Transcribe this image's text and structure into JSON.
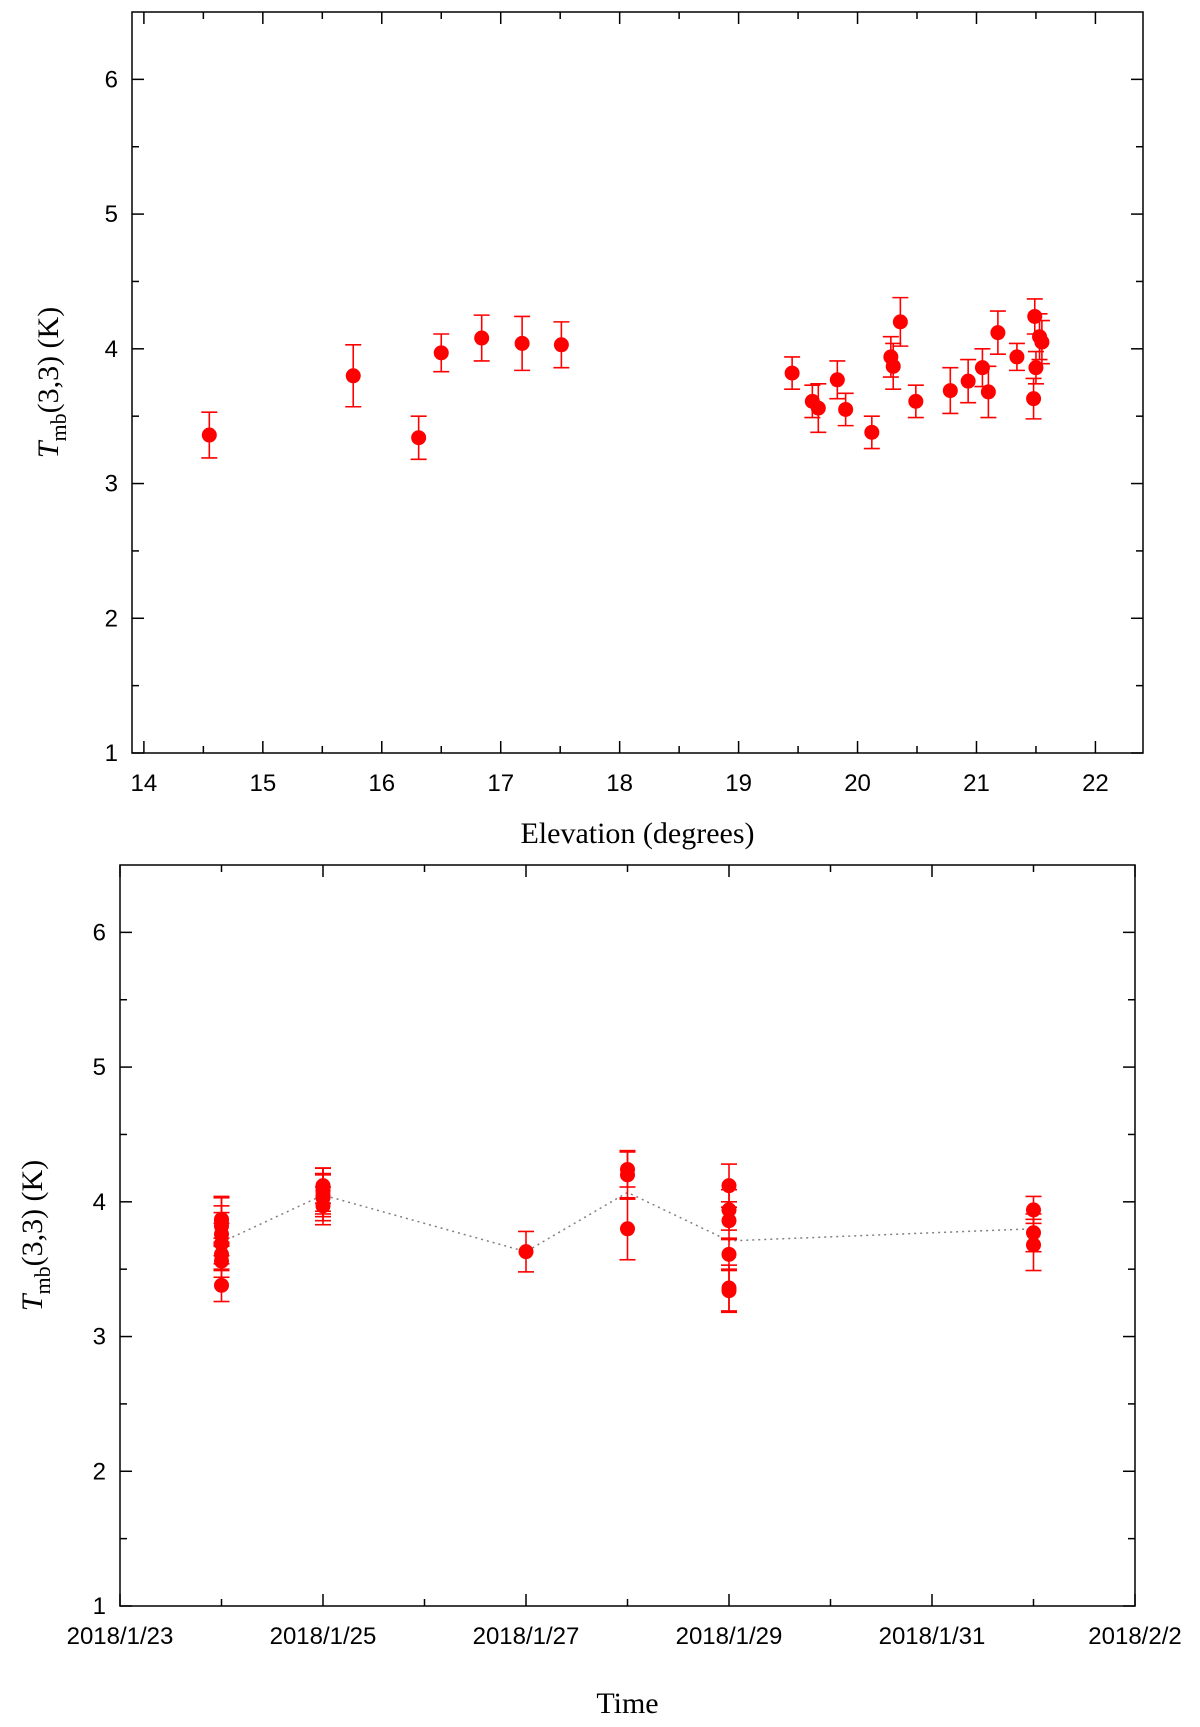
{
  "chart_data": [
    {
      "type": "scatter",
      "xlabel": "Elevation (degrees)",
      "ylabel": "T",
      "ylabel_sub": "mb",
      "ylabel_rest": "(3,3) (K)",
      "xlim": [
        13.9,
        22.4
      ],
      "ylim": [
        1,
        6.5
      ],
      "xticks": [
        14,
        15,
        16,
        17,
        18,
        19,
        20,
        21,
        22
      ],
      "yticks": [
        1,
        2,
        3,
        4,
        5,
        6
      ],
      "marker_color": "#ff0000",
      "points": [
        {
          "x": 14.55,
          "y": 3.36,
          "err": 0.17
        },
        {
          "x": 15.76,
          "y": 3.8,
          "err": 0.23
        },
        {
          "x": 16.31,
          "y": 3.34,
          "err": 0.16
        },
        {
          "x": 16.5,
          "y": 3.97,
          "err": 0.14
        },
        {
          "x": 16.84,
          "y": 4.08,
          "err": 0.17
        },
        {
          "x": 17.18,
          "y": 4.04,
          "err": 0.2
        },
        {
          "x": 17.51,
          "y": 4.03,
          "err": 0.17
        },
        {
          "x": 19.45,
          "y": 3.82,
          "err": 0.12
        },
        {
          "x": 19.62,
          "y": 3.61,
          "err": 0.12
        },
        {
          "x": 19.67,
          "y": 3.56,
          "err": 0.18
        },
        {
          "x": 19.83,
          "y": 3.77,
          "err": 0.14
        },
        {
          "x": 19.9,
          "y": 3.55,
          "err": 0.12
        },
        {
          "x": 20.12,
          "y": 3.38,
          "err": 0.12
        },
        {
          "x": 20.28,
          "y": 3.94,
          "err": 0.15
        },
        {
          "x": 20.3,
          "y": 3.87,
          "err": 0.17
        },
        {
          "x": 20.36,
          "y": 4.2,
          "err": 0.18
        },
        {
          "x": 20.49,
          "y": 3.61,
          "err": 0.12
        },
        {
          "x": 20.78,
          "y": 3.69,
          "err": 0.17
        },
        {
          "x": 20.93,
          "y": 3.76,
          "err": 0.16
        },
        {
          "x": 21.05,
          "y": 3.86,
          "err": 0.14
        },
        {
          "x": 21.1,
          "y": 3.68,
          "err": 0.19
        },
        {
          "x": 21.18,
          "y": 4.12,
          "err": 0.16
        },
        {
          "x": 21.34,
          "y": 3.94,
          "err": 0.1
        },
        {
          "x": 21.48,
          "y": 3.63,
          "err": 0.15
        },
        {
          "x": 21.49,
          "y": 4.24,
          "err": 0.13
        },
        {
          "x": 21.5,
          "y": 3.86,
          "err": 0.12
        },
        {
          "x": 21.53,
          "y": 4.09,
          "err": 0.17
        },
        {
          "x": 21.55,
          "y": 4.05,
          "err": 0.16
        }
      ]
    },
    {
      "type": "scatter",
      "xlabel": "Time",
      "ylabel": "T",
      "ylabel_sub": "mb",
      "ylabel_rest": "(3,3) (K)",
      "xlim": [
        0,
        10
      ],
      "ylim": [
        1,
        6.5
      ],
      "xticks": [
        0,
        2,
        4,
        6,
        8,
        10
      ],
      "xtick_labels": [
        "2018/1/23",
        "2018/1/25",
        "2018/1/27",
        "2018/1/29",
        "2018/1/31",
        "2018/2/2"
      ],
      "x_units": "days since 2018/1/23",
      "yticks": [
        1,
        2,
        3,
        4,
        5,
        6
      ],
      "marker_color": "#ff0000",
      "line_color": "#808080",
      "mean_line": [
        {
          "x": 1,
          "y": 3.7
        },
        {
          "x": 2,
          "y": 4.05
        },
        {
          "x": 4,
          "y": 3.63
        },
        {
          "x": 5,
          "y": 4.07
        },
        {
          "x": 6,
          "y": 3.71
        },
        {
          "x": 9,
          "y": 3.8
        }
      ],
      "points": [
        {
          "x": 1,
          "y": 3.38,
          "err": 0.12
        },
        {
          "x": 1,
          "y": 3.56,
          "err": 0.12
        },
        {
          "x": 1,
          "y": 3.61,
          "err": 0.12
        },
        {
          "x": 1,
          "y": 3.69,
          "err": 0.15
        },
        {
          "x": 1,
          "y": 3.76,
          "err": 0.16
        },
        {
          "x": 1,
          "y": 3.82,
          "err": 0.15
        },
        {
          "x": 1,
          "y": 3.86,
          "err": 0.17
        },
        {
          "x": 1,
          "y": 3.87,
          "err": 0.17
        },
        {
          "x": 2,
          "y": 3.97,
          "err": 0.14
        },
        {
          "x": 2,
          "y": 4.03,
          "err": 0.17
        },
        {
          "x": 2,
          "y": 4.05,
          "err": 0.16
        },
        {
          "x": 2,
          "y": 4.08,
          "err": 0.17
        },
        {
          "x": 2,
          "y": 4.09,
          "err": 0.16
        },
        {
          "x": 2,
          "y": 4.12,
          "err": 0.13
        },
        {
          "x": 4,
          "y": 3.63,
          "err": 0.15
        },
        {
          "x": 5,
          "y": 3.8,
          "err": 0.23
        },
        {
          "x": 5,
          "y": 4.2,
          "err": 0.18
        },
        {
          "x": 5,
          "y": 4.24,
          "err": 0.13
        },
        {
          "x": 6,
          "y": 3.34,
          "err": 0.16
        },
        {
          "x": 6,
          "y": 3.36,
          "err": 0.17
        },
        {
          "x": 6,
          "y": 3.61,
          "err": 0.12
        },
        {
          "x": 6,
          "y": 3.86,
          "err": 0.14
        },
        {
          "x": 6,
          "y": 3.94,
          "err": 0.15
        },
        {
          "x": 6,
          "y": 4.12,
          "err": 0.16
        },
        {
          "x": 9,
          "y": 3.68,
          "err": 0.19
        },
        {
          "x": 9,
          "y": 3.77,
          "err": 0.14
        },
        {
          "x": 9,
          "y": 3.94,
          "err": 0.1
        }
      ]
    }
  ]
}
